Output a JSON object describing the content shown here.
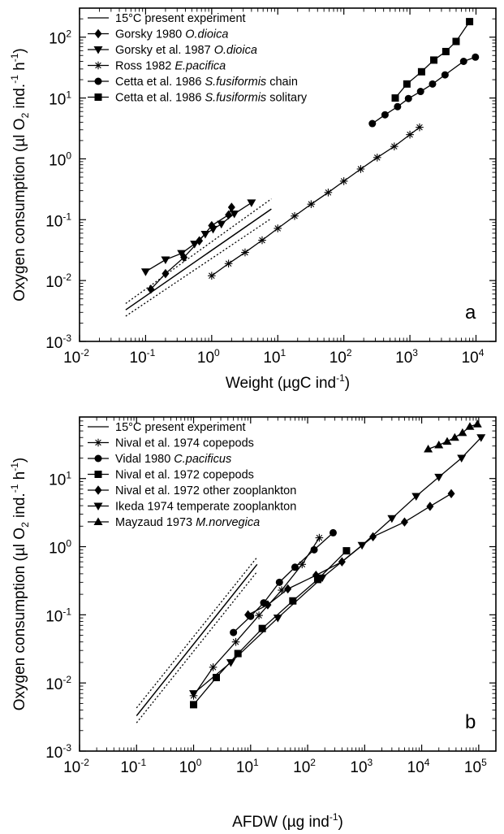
{
  "chart_data": [
    {
      "type": "scatter",
      "panel_label": "a",
      "xlabel_main": "Weight (µgC ind",
      "xlabel_exp": "-1",
      "xlabel_end": ")",
      "ylabel_main": "Oxygen consumption (µl O",
      "ylabel_sub": "2",
      "ylabel_mid": " ind.",
      "ylabel_exp1": "-1",
      "ylabel_h": " h",
      "ylabel_exp2": "-1",
      "ylabel_end": ")",
      "xscale": "log",
      "yscale": "log",
      "xlim": [
        0.01,
        20000
      ],
      "ylim": [
        0.001,
        300
      ],
      "xticks": [
        {
          "base": "10",
          "exp": "-2",
          "value": 0.01
        },
        {
          "base": "10",
          "exp": "-1",
          "value": 0.1
        },
        {
          "base": "10",
          "exp": "0",
          "value": 1
        },
        {
          "base": "10",
          "exp": "1",
          "value": 10
        },
        {
          "base": "10",
          "exp": "2",
          "value": 100
        },
        {
          "base": "10",
          "exp": "3",
          "value": 1000
        },
        {
          "base": "10",
          "exp": "4",
          "value": 10000
        }
      ],
      "yticks": [
        {
          "base": "10",
          "exp": "-3",
          "value": 0.001
        },
        {
          "base": "10",
          "exp": "-2",
          "value": 0.01
        },
        {
          "base": "10",
          "exp": "-1",
          "value": 0.1
        },
        {
          "base": "10",
          "exp": "0",
          "value": 1
        },
        {
          "base": "10",
          "exp": "1",
          "value": 10
        },
        {
          "base": "10",
          "exp": "2",
          "value": 100
        }
      ],
      "legend_position": "top-left",
      "series": [
        {
          "name_plain": "15°C present experiment",
          "name_italic": "",
          "marker": "line",
          "points": [
            [
              0.05,
              0.0033
            ],
            [
              8,
              0.15
            ]
          ],
          "ci_upper": [
            [
              0.05,
              0.0042
            ],
            [
              8,
              0.22
            ]
          ],
          "ci_lower": [
            [
              0.05,
              0.0026
            ],
            [
              8,
              0.105
            ]
          ]
        },
        {
          "name_plain": "Gorsky 1980 ",
          "name_italic": "O.dioica",
          "marker": "diamond",
          "points": [
            [
              0.12,
              0.0072
            ],
            [
              0.2,
              0.013
            ],
            [
              0.38,
              0.024
            ],
            [
              0.65,
              0.045
            ],
            [
              1.0,
              0.08
            ],
            [
              1.8,
              0.12
            ],
            [
              2.0,
              0.16
            ]
          ]
        },
        {
          "name_plain": "Gorsky et al. 1987 ",
          "name_italic": "O.dioica",
          "marker": "triangle-down",
          "points": [
            [
              0.1,
              0.014
            ],
            [
              0.2,
              0.022
            ],
            [
              0.35,
              0.028
            ],
            [
              0.55,
              0.04
            ],
            [
              0.8,
              0.058
            ],
            [
              1.05,
              0.07
            ],
            [
              1.4,
              0.085
            ],
            [
              2.2,
              0.125
            ],
            [
              4.0,
              0.19
            ]
          ]
        },
        {
          "name_plain": "Ross 1982 ",
          "name_italic": "E.pacifica",
          "marker": "asterisk",
          "points": [
            [
              1.0,
              0.012
            ],
            [
              1.8,
              0.019
            ],
            [
              3.2,
              0.029
            ],
            [
              5.8,
              0.046
            ],
            [
              10,
              0.072
            ],
            [
              18,
              0.115
            ],
            [
              32,
              0.18
            ],
            [
              58,
              0.28
            ],
            [
              100,
              0.43
            ],
            [
              180,
              0.68
            ],
            [
              320,
              1.05
            ],
            [
              580,
              1.6
            ],
            [
              1000,
              2.5
            ],
            [
              1400,
              3.3
            ]
          ]
        },
        {
          "name_plain": "Cetta et al. 1986 ",
          "name_italic": "S.fusiformis",
          "name_tail": " chain",
          "marker": "circle",
          "points": [
            [
              270,
              3.8
            ],
            [
              420,
              5.3
            ],
            [
              650,
              7.2
            ],
            [
              950,
              9.8
            ],
            [
              1450,
              12.8
            ],
            [
              2200,
              17
            ],
            [
              3400,
              24
            ],
            [
              6500,
              40
            ],
            [
              9800,
              47
            ]
          ]
        },
        {
          "name_plain": "Cetta et al. 1986 ",
          "name_italic": "S.fusiformis",
          "name_tail": " solitary",
          "marker": "square",
          "points": [
            [
              600,
              10
            ],
            [
              900,
              17
            ],
            [
              1500,
              27
            ],
            [
              2300,
              42
            ],
            [
              3500,
              58
            ],
            [
              5000,
              85
            ],
            [
              8000,
              180
            ]
          ]
        }
      ]
    },
    {
      "type": "scatter",
      "panel_label": "b",
      "xlabel_main": "AFDW (µg ind",
      "xlabel_exp": "-1",
      "xlabel_end": ")",
      "ylabel_main": "Oxygen consumption (µl O",
      "ylabel_sub": "2",
      "ylabel_mid": " ind.",
      "ylabel_exp1": "-1",
      "ylabel_h": " h",
      "ylabel_exp2": "-1",
      "ylabel_end": ")",
      "xscale": "log",
      "yscale": "log",
      "xlim": [
        0.01,
        200000
      ],
      "ylim": [
        0.001,
        80
      ],
      "xticks": [
        {
          "base": "10",
          "exp": "-2",
          "value": 0.01
        },
        {
          "base": "10",
          "exp": "-1",
          "value": 0.1
        },
        {
          "base": "10",
          "exp": "0",
          "value": 1
        },
        {
          "base": "10",
          "exp": "1",
          "value": 10
        },
        {
          "base": "10",
          "exp": "2",
          "value": 100
        },
        {
          "base": "10",
          "exp": "3",
          "value": 1000
        },
        {
          "base": "10",
          "exp": "4",
          "value": 10000
        },
        {
          "base": "10",
          "exp": "5",
          "value": 100000
        }
      ],
      "yticks": [
        {
          "base": "10",
          "exp": "-3",
          "value": 0.001
        },
        {
          "base": "10",
          "exp": "-2",
          "value": 0.01
        },
        {
          "base": "10",
          "exp": "-1",
          "value": 0.1
        },
        {
          "base": "10",
          "exp": "0",
          "value": 1
        },
        {
          "base": "10",
          "exp": "1",
          "value": 10
        }
      ],
      "legend_position": "top-left",
      "series": [
        {
          "name_plain": "15°C present experiment",
          "name_italic": "",
          "marker": "line",
          "points": [
            [
              0.1,
              0.0033
            ],
            [
              13,
              0.55
            ]
          ],
          "ci_upper": [
            [
              0.1,
              0.0043
            ],
            [
              13,
              0.7
            ]
          ],
          "ci_lower": [
            [
              0.1,
              0.0026
            ],
            [
              13,
              0.43
            ]
          ]
        },
        {
          "name_plain": "Nival et al. 1974 copepods",
          "name_italic": "",
          "marker": "asterisk",
          "points": [
            [
              1.0,
              0.0065
            ],
            [
              2.2,
              0.017
            ],
            [
              5.5,
              0.04
            ],
            [
              14,
              0.098
            ],
            [
              35,
              0.23
            ],
            [
              80,
              0.55
            ],
            [
              160,
              1.35
            ]
          ]
        },
        {
          "name_plain": "Vidal 1980 ",
          "name_italic": "C.pacificus",
          "marker": "circle",
          "points": [
            [
              5,
              0.055
            ],
            [
              10,
              0.095
            ],
            [
              17,
              0.15
            ],
            [
              32,
              0.3
            ],
            [
              60,
              0.5
            ],
            [
              130,
              0.9
            ],
            [
              280,
              1.6
            ]
          ]
        },
        {
          "name_plain": "Nival et al. 1972 copepods",
          "name_italic": "",
          "marker": "square",
          "points": [
            [
              1.0,
              0.0048
            ],
            [
              2.5,
              0.012
            ],
            [
              6,
              0.027
            ],
            [
              16,
              0.063
            ],
            [
              55,
              0.16
            ],
            [
              150,
              0.33
            ],
            [
              480,
              0.87
            ]
          ]
        },
        {
          "name_plain": "Nival et al. 1972 other zooplankton",
          "name_italic": "",
          "marker": "diamond",
          "points": [
            [
              9,
              0.1
            ],
            [
              20,
              0.14
            ],
            [
              45,
              0.24
            ],
            [
              140,
              0.38
            ],
            [
              400,
              0.6
            ],
            [
              1400,
              1.4
            ],
            [
              5000,
              2.3
            ],
            [
              14000,
              3.9
            ],
            [
              33000,
              6.0
            ]
          ]
        },
        {
          "name_plain": "Ikeda 1974 temperate zooplankton",
          "name_italic": "",
          "marker": "triangle-down",
          "points": [
            [
              1.0,
              0.007
            ],
            [
              4.5,
              0.02
            ],
            [
              30,
              0.09
            ],
            [
              180,
              0.35
            ],
            [
              900,
              1.05
            ],
            [
              3000,
              2.6
            ],
            [
              8000,
              5.5
            ],
            [
              20000,
              10.5
            ],
            [
              50000,
              20
            ],
            [
              110000,
              40
            ]
          ]
        },
        {
          "name_plain": "Mayzaud 1973 ",
          "name_italic": "M.norvegica",
          "marker": "triangle-up",
          "points": [
            [
              13000,
              27
            ],
            [
              20000,
              31
            ],
            [
              28000,
              35
            ],
            [
              38000,
              40
            ],
            [
              52000,
              47
            ],
            [
              70000,
              58
            ],
            [
              95000,
              63
            ]
          ]
        }
      ]
    }
  ]
}
